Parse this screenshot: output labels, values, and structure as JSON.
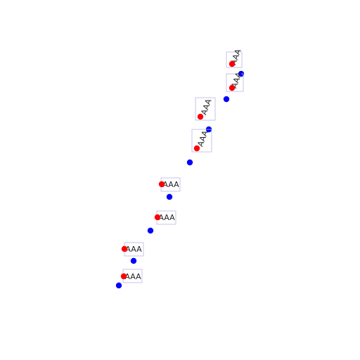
{
  "colors": {
    "background": "#ffffff",
    "blue_point": "#0000ff",
    "red_point": "#ff0000",
    "label_box_stroke": "#b7b7e8",
    "label_text": "#222222"
  },
  "labels": [
    {
      "text": "AAA",
      "rotation": 0
    },
    {
      "text": "AAA",
      "rotation": 0
    },
    {
      "text": "AAA",
      "rotation": 0
    },
    {
      "text": "AAA",
      "rotation": 0
    },
    {
      "text": "AAA",
      "rotation": -70
    },
    {
      "text": "AAA",
      "rotation": -70
    },
    {
      "text": "AAA",
      "rotation": -70
    },
    {
      "text": "AAA",
      "rotation": -70
    }
  ]
}
